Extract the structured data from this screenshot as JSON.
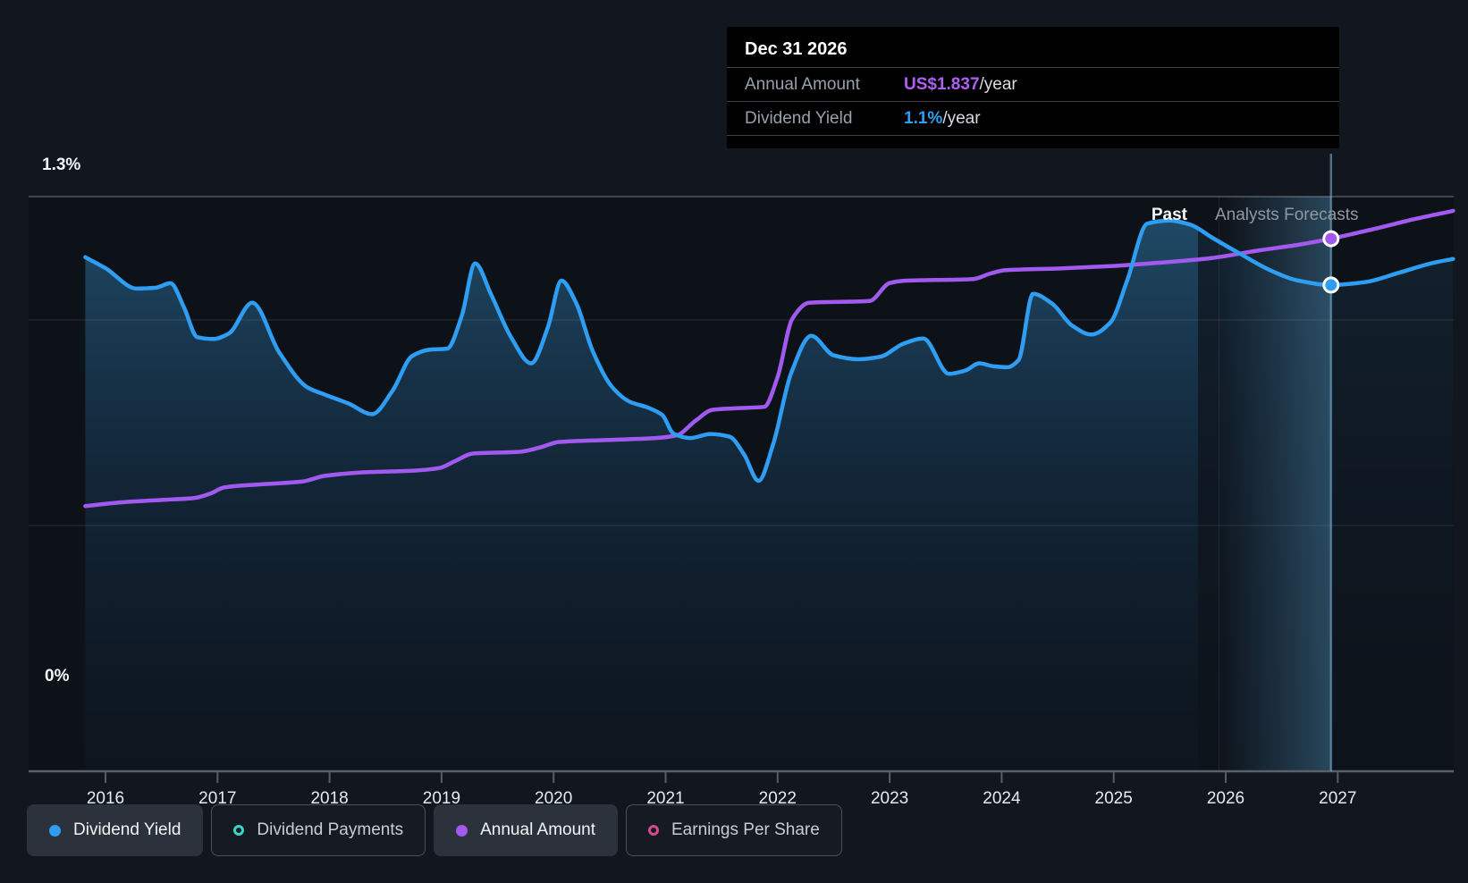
{
  "tooltip": {
    "title": "Dec 31 2026",
    "rows": [
      {
        "label": "Annual Amount",
        "value": "US$1.837",
        "suffix": "/year",
        "color": "#b15ef6"
      },
      {
        "label": "Dividend Yield",
        "value": "1.1%",
        "suffix": "/year",
        "color": "#2e9ff3"
      }
    ]
  },
  "labels": {
    "past": "Past",
    "forecasts": "Analysts Forecasts",
    "y_top": "1.3%",
    "y_zero": "0%"
  },
  "legend": [
    {
      "label": "Dividend Yield",
      "color": "#2e9df2",
      "style": "filled",
      "active": true
    },
    {
      "label": "Dividend Payments",
      "color": "#39d5c4",
      "style": "ring",
      "active": false
    },
    {
      "label": "Annual Amount",
      "color": "#a259f0",
      "style": "filled",
      "active": true
    },
    {
      "label": "Earnings Per Share",
      "color": "#d6498f",
      "style": "ring",
      "active": false
    }
  ],
  "chart_data": {
    "type": "line",
    "title": "Dividend history and forecast",
    "x_ticks": [
      2016,
      2017,
      2018,
      2019,
      2020,
      2021,
      2022,
      2023,
      2024,
      2025,
      2026,
      2027
    ],
    "x_range": [
      2015.82,
      2028.03
    ],
    "ylim": [
      0,
      1.3
    ],
    "y_top_label_value": 1.3,
    "y_zero_label_value": 0,
    "forecast_start": 2025.75,
    "hover_band": [
      2025.94,
      2026.94
    ],
    "cursor_x": 2026.94,
    "series": [
      {
        "name": "Dividend Yield",
        "unit": "%",
        "color": "#2e9df2",
        "area": true,
        "points": [
          [
            2015.82,
            1.163
          ],
          [
            2016.0,
            1.138
          ],
          [
            2016.28,
            1.092
          ],
          [
            2016.45,
            1.094
          ],
          [
            2016.58,
            1.104
          ],
          [
            2016.7,
            1.05
          ],
          [
            2016.82,
            0.982
          ],
          [
            2016.96,
            0.978
          ],
          [
            2017.1,
            0.99
          ],
          [
            2017.31,
            1.06
          ],
          [
            2017.55,
            0.948
          ],
          [
            2017.8,
            0.869
          ],
          [
            2017.97,
            0.851
          ],
          [
            2018.17,
            0.832
          ],
          [
            2018.38,
            0.808
          ],
          [
            2018.56,
            0.86
          ],
          [
            2018.74,
            0.94
          ],
          [
            2018.9,
            0.954
          ],
          [
            2019.05,
            0.956
          ],
          [
            2019.18,
            1.03
          ],
          [
            2019.3,
            1.149
          ],
          [
            2019.44,
            1.08
          ],
          [
            2019.62,
            0.982
          ],
          [
            2019.8,
            0.923
          ],
          [
            2019.95,
            1.005
          ],
          [
            2020.07,
            1.11
          ],
          [
            2020.2,
            1.06
          ],
          [
            2020.35,
            0.95
          ],
          [
            2020.52,
            0.87
          ],
          [
            2020.68,
            0.836
          ],
          [
            2020.85,
            0.822
          ],
          [
            2020.97,
            0.806
          ],
          [
            2021.07,
            0.764
          ],
          [
            2021.22,
            0.754
          ],
          [
            2021.4,
            0.763
          ],
          [
            2021.57,
            0.757
          ],
          [
            2021.7,
            0.717
          ],
          [
            2021.83,
            0.657
          ],
          [
            2021.96,
            0.74
          ],
          [
            2022.12,
            0.9
          ],
          [
            2022.3,
            0.985
          ],
          [
            2022.5,
            0.941
          ],
          [
            2022.72,
            0.932
          ],
          [
            2022.92,
            0.938
          ],
          [
            2023.12,
            0.967
          ],
          [
            2023.3,
            0.979
          ],
          [
            2023.53,
            0.899
          ],
          [
            2023.68,
            0.907
          ],
          [
            2023.8,
            0.923
          ],
          [
            2023.93,
            0.916
          ],
          [
            2024.05,
            0.914
          ],
          [
            2024.15,
            0.93
          ],
          [
            2024.28,
            1.08
          ],
          [
            2024.45,
            1.058
          ],
          [
            2024.63,
            1.008
          ],
          [
            2024.8,
            0.988
          ],
          [
            2024.97,
            1.015
          ],
          [
            2025.12,
            1.11
          ],
          [
            2025.3,
            1.239
          ],
          [
            2025.5,
            1.246
          ],
          [
            2025.68,
            1.237
          ],
          [
            2025.88,
            1.207
          ],
          [
            2026.12,
            1.172
          ],
          [
            2026.4,
            1.133
          ],
          [
            2026.65,
            1.11
          ],
          [
            2026.94,
            1.1
          ],
          [
            2027.25,
            1.107
          ],
          [
            2027.55,
            1.128
          ],
          [
            2027.85,
            1.15
          ],
          [
            2028.03,
            1.159
          ]
        ]
      },
      {
        "name": "Annual Amount",
        "unit": "US$/year",
        "color": "#a259f0",
        "area": false,
        "points": [
          [
            2015.82,
            0.915
          ],
          [
            2016.15,
            0.928
          ],
          [
            2016.5,
            0.936
          ],
          [
            2016.8,
            0.943
          ],
          [
            2016.93,
            0.957
          ],
          [
            2017.06,
            0.979
          ],
          [
            2017.35,
            0.989
          ],
          [
            2017.75,
            0.999
          ],
          [
            2017.96,
            1.019
          ],
          [
            2018.3,
            1.031
          ],
          [
            2018.75,
            1.037
          ],
          [
            2018.98,
            1.046
          ],
          [
            2019.12,
            1.07
          ],
          [
            2019.28,
            1.096
          ],
          [
            2019.7,
            1.102
          ],
          [
            2019.88,
            1.117
          ],
          [
            2020.05,
            1.136
          ],
          [
            2020.5,
            1.143
          ],
          [
            2020.9,
            1.149
          ],
          [
            2021.1,
            1.159
          ],
          [
            2021.27,
            1.21
          ],
          [
            2021.42,
            1.247
          ],
          [
            2021.62,
            1.252
          ],
          [
            2021.88,
            1.257
          ],
          [
            2022.0,
            1.36
          ],
          [
            2022.13,
            1.56
          ],
          [
            2022.28,
            1.616
          ],
          [
            2022.82,
            1.622
          ],
          [
            2023.0,
            1.684
          ],
          [
            2023.13,
            1.692
          ],
          [
            2023.75,
            1.698
          ],
          [
            2023.9,
            1.717
          ],
          [
            2024.03,
            1.728
          ],
          [
            2024.5,
            1.734
          ],
          [
            2024.95,
            1.742
          ],
          [
            2025.4,
            1.754
          ],
          [
            2025.85,
            1.769
          ],
          [
            2026.3,
            1.797
          ],
          [
            2026.65,
            1.816
          ],
          [
            2026.94,
            1.837
          ],
          [
            2027.35,
            1.873
          ],
          [
            2027.7,
            1.906
          ],
          [
            2028.03,
            1.933
          ]
        ]
      }
    ],
    "markers": [
      {
        "series": "Dividend Yield",
        "x": 2026.94,
        "value": 1.1
      },
      {
        "series": "Annual Amount",
        "x": 2026.94,
        "value": 1.837
      }
    ],
    "legend_position": "bottom",
    "grid": true
  }
}
